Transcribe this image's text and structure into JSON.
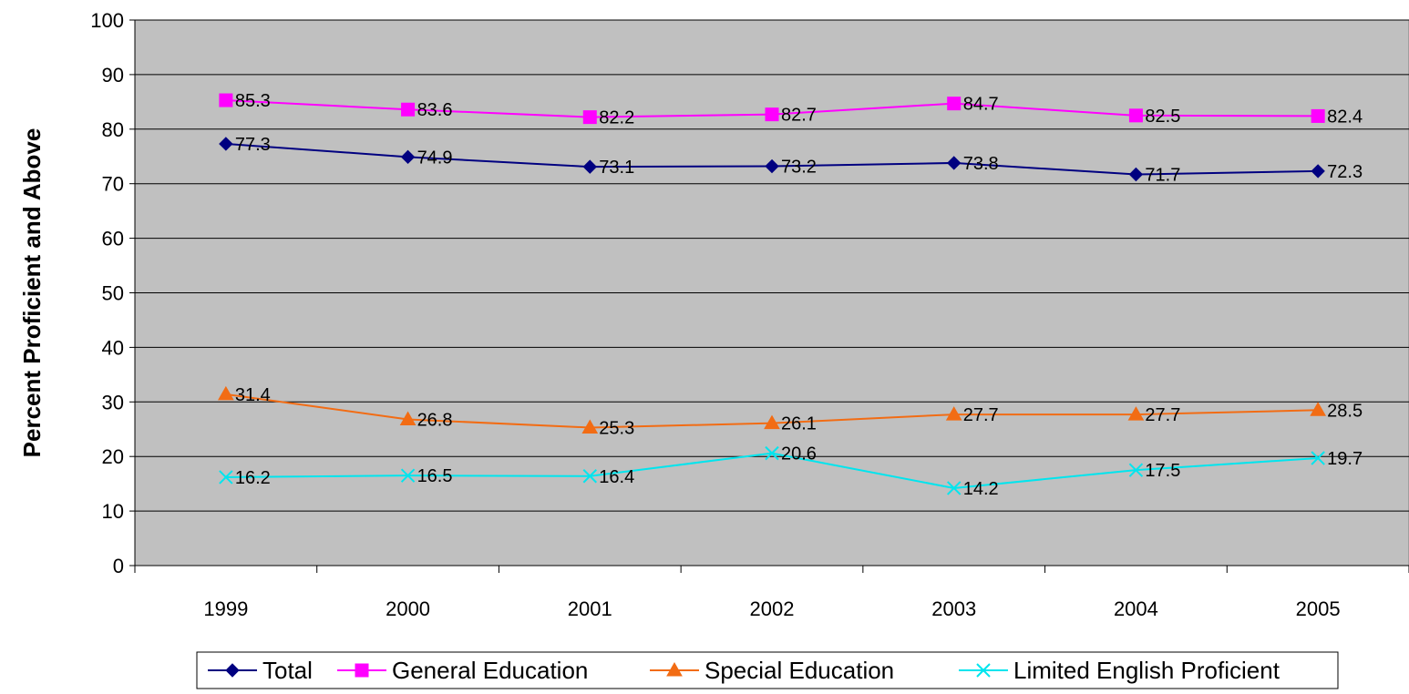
{
  "chart_data": {
    "type": "line",
    "title": "",
    "xlabel": "",
    "ylabel": "Percent Proficient and Above",
    "ylim": [
      0,
      100
    ],
    "yticks": [
      "0",
      "10",
      "20",
      "30",
      "40",
      "50",
      "60",
      "70",
      "80",
      "90",
      "100"
    ],
    "categories": [
      "1999",
      "2000",
      "2001",
      "2002",
      "2003",
      "2004",
      "2005"
    ],
    "grid": true,
    "legend_position": "bottom",
    "plot_background": "#c0c0c0",
    "series": [
      {
        "name": "Total",
        "color": "#000080",
        "marker": "diamond",
        "values": [
          77.3,
          74.9,
          73.1,
          73.2,
          73.8,
          71.7,
          72.3
        ],
        "labels": [
          "77.3",
          "74.9",
          "73.1",
          "73.2",
          "73.8",
          "71.7",
          "72.3"
        ]
      },
      {
        "name": "General Education",
        "color": "#ff00ff",
        "marker": "square",
        "values": [
          85.3,
          83.6,
          82.2,
          82.7,
          84.7,
          82.5,
          82.4
        ],
        "labels": [
          "85.3",
          "83.6",
          "82.2",
          "82.7",
          "84.7",
          "82.5",
          "82.4"
        ]
      },
      {
        "name": "Special Education",
        "color": "#f26c14",
        "marker": "triangle",
        "values": [
          31.4,
          26.8,
          25.3,
          26.1,
          27.7,
          27.7,
          28.5
        ],
        "labels": [
          "31.4",
          "26.8",
          "25.3",
          "26.1",
          "27.7",
          "27.7",
          "28.5"
        ]
      },
      {
        "name": "Limited English Proficient",
        "color": "#00e5ee",
        "marker": "x",
        "values": [
          16.2,
          16.5,
          16.4,
          20.6,
          14.2,
          17.5,
          19.7
        ],
        "labels": [
          "16.2",
          "16.5",
          "16.4",
          "20.6",
          "14.2",
          "17.5",
          "19.7"
        ]
      }
    ]
  }
}
